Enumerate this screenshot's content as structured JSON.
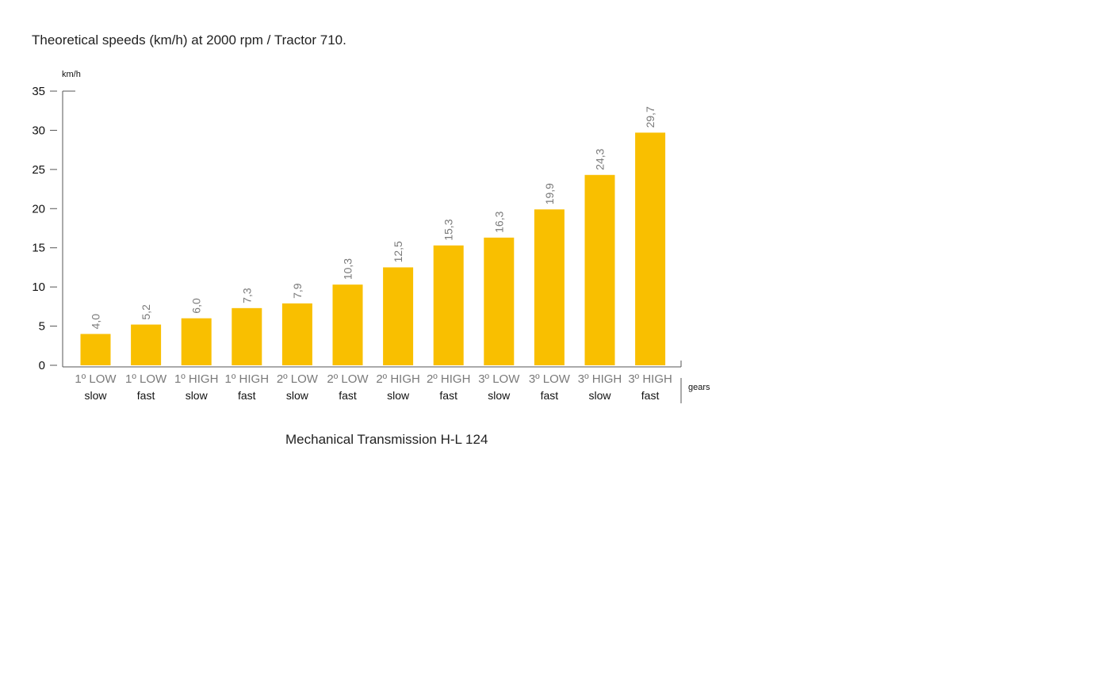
{
  "chart_data": {
    "type": "bar",
    "title": "Theoretical speeds (km/h) at 2000 rpm / Tractor 710.",
    "ylabel": "km/h",
    "xlabel": "gears",
    "caption": "Mechanical Transmission H-L 124",
    "ylim": [
      0,
      35
    ],
    "yticks": [
      "0",
      "5",
      "10",
      "15",
      "20",
      "25",
      "30",
      "35"
    ],
    "grid": false,
    "categories": [
      {
        "gear": "1º LOW",
        "speed": "slow"
      },
      {
        "gear": "1º LOW",
        "speed": "fast"
      },
      {
        "gear": "1º HIGH",
        "speed": "slow"
      },
      {
        "gear": "1º HIGH",
        "speed": "fast"
      },
      {
        "gear": "2º LOW",
        "speed": "slow"
      },
      {
        "gear": "2º LOW",
        "speed": "fast"
      },
      {
        "gear": "2º HIGH",
        "speed": "slow"
      },
      {
        "gear": "2º HIGH",
        "speed": "fast"
      },
      {
        "gear": "3º LOW",
        "speed": "slow"
      },
      {
        "gear": "3º LOW",
        "speed": "fast"
      },
      {
        "gear": "3º HIGH",
        "speed": "slow"
      },
      {
        "gear": "3º HIGH",
        "speed": "fast"
      }
    ],
    "values": [
      4.0,
      5.2,
      6.0,
      7.3,
      7.9,
      10.3,
      12.5,
      15.3,
      16.3,
      19.9,
      24.3,
      29.7
    ],
    "value_labels": [
      "4,0",
      "5,2",
      "6,0",
      "7,3",
      "7,9",
      "10,3",
      "12,5",
      "15,3",
      "16,3",
      "19,9",
      "24,3",
      "29,7"
    ],
    "colors": {
      "bar": "#F9BF00"
    }
  }
}
